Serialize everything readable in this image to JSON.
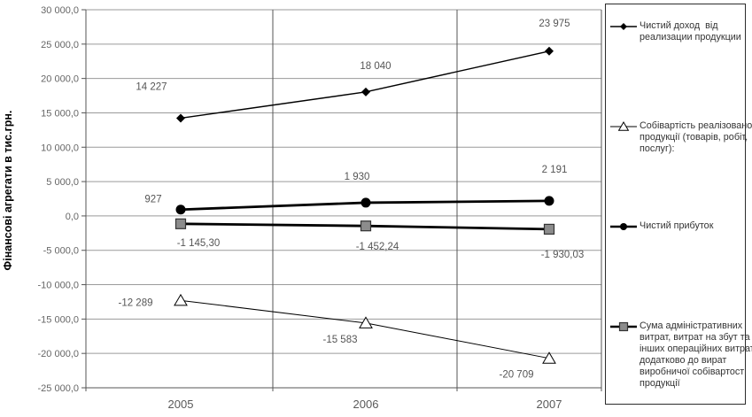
{
  "chart_data": {
    "type": "line",
    "title": "",
    "ylabel": "Фінансові агрегати в тис.грн.",
    "categories": [
      "2005",
      "2006",
      "2007"
    ],
    "ylim": [
      -25000,
      30000
    ],
    "ytick_step": 5000,
    "ytick_labels": [
      "30 000,0",
      "25 000,0",
      "20 000,0",
      "15 000,0",
      "10 000,0",
      "5 000,0",
      "0,0",
      "-5 000,0",
      "-10 000,0",
      "-15 000,0",
      "-20 000,0",
      "-25 000,0"
    ],
    "grid": true,
    "legend_position": "right",
    "series": [
      {
        "name": "Чистий доход  від\nреализации продукции",
        "marker": "diamond",
        "color": "#000000",
        "marker_fill": "#000000",
        "values": [
          14227,
          18040,
          23975
        ],
        "point_labels": [
          "14 227",
          "18 040",
          "23 975"
        ]
      },
      {
        "name": "Собівартість реалізованої\nпродукції (товарів, робіт,\nпослуг):",
        "marker": "triangle",
        "color": "#000000",
        "marker_fill": "#ffffff",
        "values": [
          -12289,
          -15583,
          -20709
        ],
        "point_labels": [
          "-12 289",
          "-15 583",
          "-20 709"
        ]
      },
      {
        "name": "Чистий прибуток",
        "marker": "circle",
        "color": "#000000",
        "marker_fill": "#000000",
        "values": [
          927,
          1930,
          2191
        ],
        "point_labels": [
          "927",
          "1 930",
          "2 191"
        ]
      },
      {
        "name": "Сума адміністративних\nвитрат, витрат на збут та\nінших операційних витрат\nдодатково до вират\nвиробничої собівартості\nпродукції",
        "marker": "square",
        "color": "#000000",
        "marker_fill": "#8c8c8c",
        "values": [
          -1145.3,
          -1452.24,
          -1930.03
        ],
        "point_labels": [
          "-1 145,30",
          "-1 452,24",
          "-1 930,03"
        ]
      }
    ]
  }
}
